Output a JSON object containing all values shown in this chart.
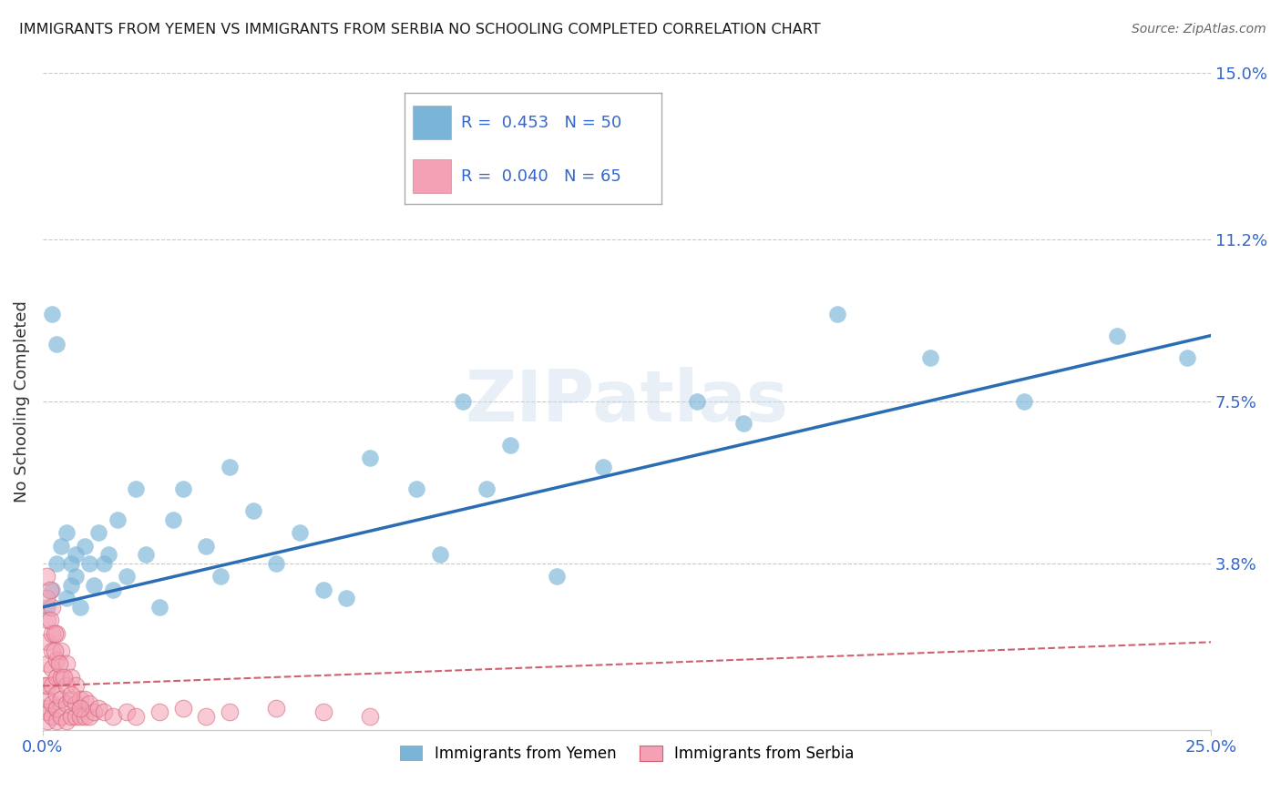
{
  "title": "IMMIGRANTS FROM YEMEN VS IMMIGRANTS FROM SERBIA NO SCHOOLING COMPLETED CORRELATION CHART",
  "source": "Source: ZipAtlas.com",
  "ylabel": "No Schooling Completed",
  "xlim": [
    0.0,
    0.25
  ],
  "ylim": [
    0.0,
    0.15
  ],
  "yticks": [
    0.038,
    0.075,
    0.112,
    0.15
  ],
  "ytick_labels": [
    "3.8%",
    "7.5%",
    "11.2%",
    "15.0%"
  ],
  "legend_label1": "Immigrants from Yemen",
  "legend_label2": "Immigrants from Serbia",
  "color_yemen": "#7ab5d8",
  "color_serbia": "#f4a0b5",
  "trendline_yemen": "#2a6db5",
  "trendline_serbia": "#d06070",
  "yemen_x": [
    0.001,
    0.002,
    0.002,
    0.003,
    0.003,
    0.004,
    0.005,
    0.005,
    0.006,
    0.006,
    0.007,
    0.007,
    0.008,
    0.009,
    0.01,
    0.011,
    0.012,
    0.013,
    0.014,
    0.015,
    0.016,
    0.018,
    0.02,
    0.022,
    0.025,
    0.028,
    0.03,
    0.035,
    0.038,
    0.04,
    0.045,
    0.05,
    0.055,
    0.06,
    0.065,
    0.07,
    0.08,
    0.085,
    0.09,
    0.095,
    0.1,
    0.11,
    0.12,
    0.14,
    0.15,
    0.17,
    0.19,
    0.21,
    0.23,
    0.245
  ],
  "yemen_y": [
    0.028,
    0.032,
    0.095,
    0.088,
    0.038,
    0.042,
    0.045,
    0.03,
    0.033,
    0.038,
    0.04,
    0.035,
    0.028,
    0.042,
    0.038,
    0.033,
    0.045,
    0.038,
    0.04,
    0.032,
    0.048,
    0.035,
    0.055,
    0.04,
    0.028,
    0.048,
    0.055,
    0.042,
    0.035,
    0.06,
    0.05,
    0.038,
    0.045,
    0.032,
    0.03,
    0.062,
    0.055,
    0.04,
    0.075,
    0.055,
    0.065,
    0.035,
    0.06,
    0.075,
    0.07,
    0.095,
    0.085,
    0.075,
    0.09,
    0.085
  ],
  "serbia_x": [
    0.0005,
    0.0005,
    0.001,
    0.001,
    0.001,
    0.001,
    0.001,
    0.001,
    0.001,
    0.002,
    0.002,
    0.002,
    0.002,
    0.002,
    0.002,
    0.002,
    0.003,
    0.003,
    0.003,
    0.003,
    0.003,
    0.003,
    0.004,
    0.004,
    0.004,
    0.004,
    0.005,
    0.005,
    0.005,
    0.005,
    0.006,
    0.006,
    0.006,
    0.007,
    0.007,
    0.007,
    0.008,
    0.008,
    0.009,
    0.009,
    0.01,
    0.01,
    0.011,
    0.012,
    0.013,
    0.015,
    0.018,
    0.02,
    0.025,
    0.03,
    0.035,
    0.04,
    0.05,
    0.06,
    0.07,
    0.0008,
    0.0008,
    0.0015,
    0.0015,
    0.0025,
    0.0025,
    0.0035,
    0.0045,
    0.006,
    0.008
  ],
  "serbia_y": [
    0.005,
    0.01,
    0.002,
    0.004,
    0.007,
    0.01,
    0.015,
    0.02,
    0.025,
    0.003,
    0.006,
    0.01,
    0.014,
    0.018,
    0.022,
    0.028,
    0.002,
    0.005,
    0.008,
    0.012,
    0.016,
    0.022,
    0.003,
    0.007,
    0.012,
    0.018,
    0.002,
    0.006,
    0.01,
    0.015,
    0.003,
    0.007,
    0.012,
    0.003,
    0.006,
    0.01,
    0.003,
    0.007,
    0.003,
    0.007,
    0.003,
    0.006,
    0.004,
    0.005,
    0.004,
    0.003,
    0.004,
    0.003,
    0.004,
    0.005,
    0.003,
    0.004,
    0.005,
    0.004,
    0.003,
    0.03,
    0.035,
    0.025,
    0.032,
    0.018,
    0.022,
    0.015,
    0.012,
    0.008,
    0.005
  ]
}
